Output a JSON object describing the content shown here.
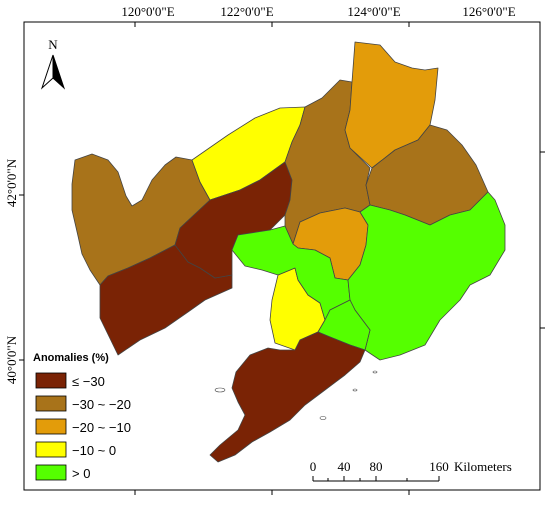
{
  "axes": {
    "top_ticks": [
      "120°0'0\"E",
      "122°0'0\"E",
      "124°0'0\"E",
      "126°0'0\"E"
    ],
    "left_ticks": [
      "42°0'0\"N",
      "40°0'0\"N"
    ]
  },
  "north_arrow": {
    "label": "N"
  },
  "legend": {
    "title": "Anomalies (%)",
    "items": [
      {
        "label": "≤ −30",
        "color": "#7a2305"
      },
      {
        "label": "−30 ~ −20",
        "color": "#a8731a"
      },
      {
        "label": "−20 ~ −10",
        "color": "#e39c0a"
      },
      {
        "label": "−10 ~ 0",
        "color": "#ffff00"
      },
      {
        "label": "> 0",
        "color": "#55ff00"
      }
    ]
  },
  "scale_bar": {
    "ticks": [
      "0",
      "40",
      "80",
      "160"
    ],
    "unit": "Kilometers"
  }
}
